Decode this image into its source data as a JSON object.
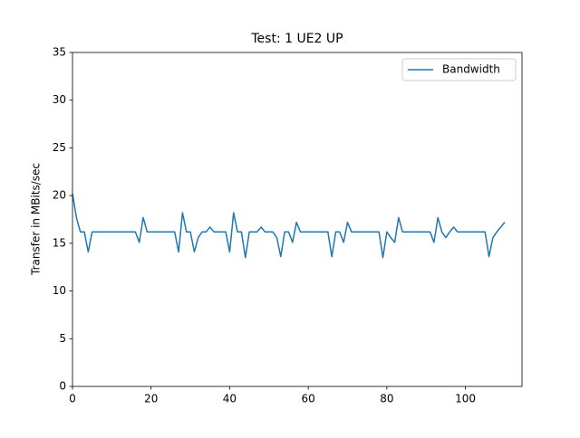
{
  "chart_data": {
    "type": "line",
    "title": "Test: 1 UE2 UP",
    "ylabel": "Transfer in MBits/sec",
    "x": [
      0,
      1,
      2,
      3,
      4,
      5,
      6,
      7,
      8,
      9,
      10,
      11,
      12,
      13,
      14,
      15,
      16,
      17,
      18,
      19,
      20,
      21,
      22,
      23,
      24,
      25,
      26,
      27,
      28,
      29,
      30,
      31,
      32,
      33,
      34,
      35,
      36,
      37,
      38,
      39,
      40,
      41,
      42,
      43,
      44,
      45,
      46,
      47,
      48,
      49,
      50,
      51,
      52,
      53,
      54,
      55,
      56,
      57,
      58,
      59,
      60,
      61,
      62,
      63,
      64,
      65,
      66,
      67,
      68,
      69,
      70,
      71,
      72,
      73,
      74,
      75,
      76,
      77,
      78,
      79,
      80,
      81,
      82,
      83,
      84,
      85,
      86,
      87,
      88,
      89,
      90,
      91,
      92,
      93,
      94,
      95,
      96,
      97,
      98,
      99,
      100,
      101,
      102,
      103,
      104,
      105,
      106,
      107,
      108,
      109,
      110
    ],
    "series": [
      {
        "name": "Bandwidth",
        "color": "#1f77b4",
        "values": [
          20.2,
          17.7,
          16.2,
          16.2,
          14.1,
          16.2,
          16.2,
          16.2,
          16.2,
          16.2,
          16.2,
          16.2,
          16.2,
          16.2,
          16.2,
          16.2,
          16.2,
          15.1,
          17.7,
          16.2,
          16.2,
          16.2,
          16.2,
          16.2,
          16.2,
          16.2,
          16.2,
          14.1,
          18.2,
          16.2,
          16.2,
          14.1,
          15.6,
          16.2,
          16.2,
          16.7,
          16.2,
          16.2,
          16.2,
          16.2,
          14.1,
          18.2,
          16.2,
          16.2,
          13.5,
          16.2,
          16.2,
          16.2,
          16.7,
          16.2,
          16.2,
          16.2,
          15.6,
          13.6,
          16.2,
          16.2,
          15.1,
          17.2,
          16.2,
          16.2,
          16.2,
          16.2,
          16.2,
          16.2,
          16.2,
          16.2,
          13.6,
          16.2,
          16.2,
          15.1,
          17.2,
          16.2,
          16.2,
          16.2,
          16.2,
          16.2,
          16.2,
          16.2,
          16.2,
          13.5,
          16.2,
          15.6,
          15.1,
          17.7,
          16.2,
          16.2,
          16.2,
          16.2,
          16.2,
          16.2,
          16.2,
          16.2,
          15.1,
          17.7,
          16.2,
          15.6,
          16.2,
          16.7,
          16.2,
          16.2,
          16.2,
          16.2,
          16.2,
          16.2,
          16.2,
          16.2,
          13.6,
          15.6,
          16.2,
          16.7,
          17.2
        ]
      }
    ],
    "xlim": [
      0,
      114.4
    ],
    "xticks": [
      0,
      20,
      40,
      60,
      80,
      100
    ],
    "ylim": [
      0,
      35
    ],
    "yticks": [
      0,
      5,
      10,
      15,
      20,
      25,
      30,
      35
    ],
    "legend": "upper right",
    "grid": false
  }
}
